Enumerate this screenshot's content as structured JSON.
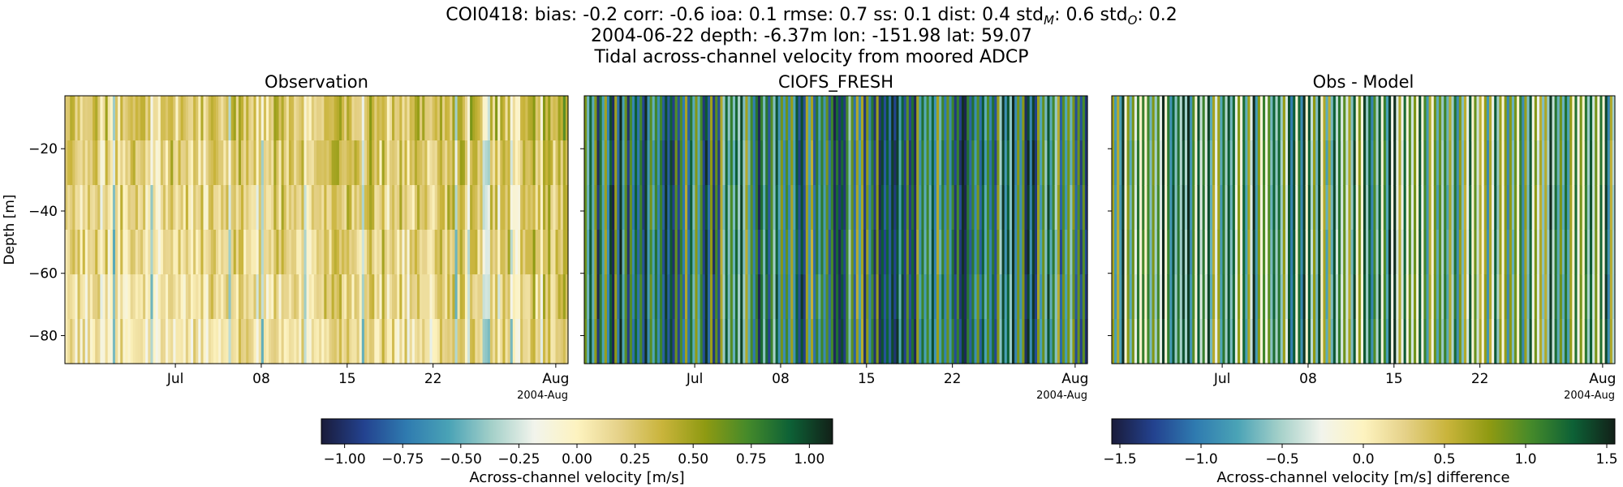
{
  "title": {
    "line1": "COI0418: bias: -0.2  corr: -0.6  ioa: 0.1  rmse: 0.7  ss: 0.1  dist: 0.4  std",
    "sub_m": "M",
    "line1_mid": ": 0.6  std",
    "sub_o": "O",
    "line1_end": ": 0.2",
    "line2": "2004-06-22 depth: -6.37m lon: -151.98 lat: 59.07",
    "line3": "Tidal across-channel velocity from moored ADCP"
  },
  "colors": {
    "cmap": [
      "#1a1b3a",
      "#23428f",
      "#2f7bb0",
      "#4aa3b6",
      "#a4d0c9",
      "#f2f4ec",
      "#fdf3c0",
      "#e5d188",
      "#c9b43b",
      "#8f9a12",
      "#458a2a",
      "#0d6136",
      "#122018"
    ]
  },
  "chart_data": [
    {
      "type": "heatmap",
      "title": "Observation",
      "ylabel": "Depth [m]",
      "ylim": [
        -89,
        -3
      ],
      "yticks": [
        "−20",
        "−40",
        "−60",
        "−80"
      ],
      "ytick_values": [
        -20,
        -40,
        -60,
        -80
      ],
      "xtick_labels": [
        "Jul",
        "08",
        "15",
        "22",
        "Aug"
      ],
      "xtick_dates": [
        "2004-07-01",
        "2004-07-08",
        "2004-07-15",
        "2004-07-22",
        "2004-08-01"
      ],
      "xlim": [
        "2004-06-22",
        "2004-08-02"
      ],
      "offset_label": "2004-Aug",
      "value_range": [
        -1.0,
        1.0
      ],
      "pattern": "mostly 0 to +0.5 m/s, thin negative streaks"
    },
    {
      "type": "heatmap",
      "title": "CIOFS_FRESH",
      "ylabel": "",
      "ylim": [
        -89,
        -3
      ],
      "xtick_labels": [
        "Jul",
        "08",
        "15",
        "22",
        "Aug"
      ],
      "xtick_dates": [
        "2004-07-01",
        "2004-07-08",
        "2004-07-15",
        "2004-07-22",
        "2004-08-01"
      ],
      "xlim": [
        "2004-06-22",
        "2004-08-02"
      ],
      "offset_label": "2004-Aug",
      "value_range": [
        -1.0,
        1.0
      ],
      "pattern": "tidal alternation approx -1 to +1 m/s, depth-uniform"
    },
    {
      "type": "heatmap",
      "title": "Obs - Model",
      "ylabel": "",
      "ylim": [
        -89,
        -3
      ],
      "xtick_labels": [
        "Jul",
        "08",
        "15",
        "22",
        "Aug"
      ],
      "xtick_dates": [
        "2004-07-01",
        "2004-07-08",
        "2004-07-15",
        "2004-07-22",
        "2004-08-01"
      ],
      "xlim": [
        "2004-06-22",
        "2004-08-02"
      ],
      "offset_label": "2004-Aug",
      "value_range": [
        -1.5,
        1.5
      ],
      "pattern": "alternating approx -1.5 to +1.5 m/s"
    }
  ],
  "colorbars": [
    {
      "label": "Across-channel velocity [m/s]",
      "range": [
        -1.1,
        1.1
      ],
      "ticks": [
        -1.0,
        -0.75,
        -0.5,
        -0.25,
        0.0,
        0.25,
        0.5,
        0.75,
        1.0
      ],
      "tick_labels": [
        "−1.00",
        "−0.75",
        "−0.50",
        "−0.25",
        "0.00",
        "0.25",
        "0.50",
        "0.75",
        "1.00"
      ]
    },
    {
      "label": "Across-channel velocity [m/s] difference",
      "range": [
        -1.55,
        1.55
      ],
      "ticks": [
        -1.5,
        -1.0,
        -0.5,
        0.0,
        0.5,
        1.0,
        1.5
      ],
      "tick_labels": [
        "−1.5",
        "−1.0",
        "−0.5",
        "0.0",
        "0.5",
        "1.0",
        "1.5"
      ]
    }
  ]
}
